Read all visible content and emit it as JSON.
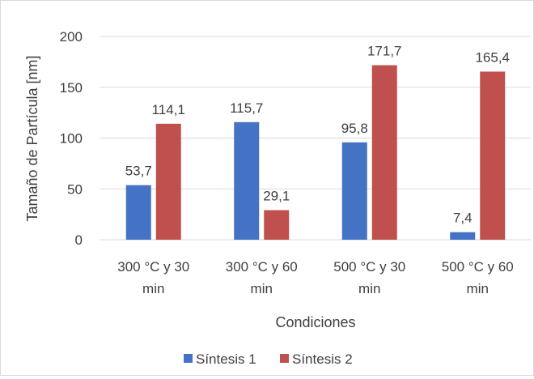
{
  "chart_data": {
    "type": "bar",
    "categories": [
      "300 °C y 30 min",
      "300 °C y 60 min",
      "500 °C y 30 min",
      "500 °C y 60 min"
    ],
    "category_lines": [
      [
        "300 °C y 30",
        "min"
      ],
      [
        "300 °C y 60",
        "min"
      ],
      [
        "500 °C y 30",
        "min"
      ],
      [
        "500 °C y 60",
        "min"
      ]
    ],
    "series": [
      {
        "name": "Síntesis 1",
        "color": "#4472C4",
        "values": [
          53.7,
          115.7,
          95.8,
          7.4
        ],
        "labels": [
          "53,7",
          "115,7",
          "95,8",
          "7,4"
        ]
      },
      {
        "name": "Síntesis 2",
        "color": "#C0504D",
        "values": [
          114.1,
          29.1,
          171.7,
          165.4
        ],
        "labels": [
          "114,1",
          "29,1",
          "171,7",
          "165,4"
        ]
      }
    ],
    "xlabel": "Condiciones",
    "ylabel": "Tamaño de Partícula [nm]",
    "ylim": [
      0,
      200
    ],
    "yticks": [
      0,
      50,
      100,
      150,
      200
    ],
    "grid": true,
    "legend_position": "bottom"
  }
}
